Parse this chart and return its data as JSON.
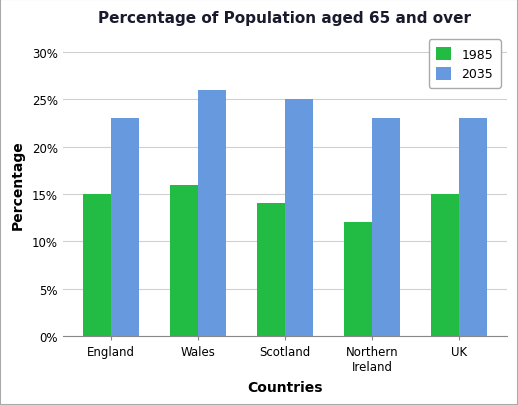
{
  "title": "Percentage of Population aged 65 and over",
  "categories": [
    "England",
    "Wales",
    "Scotland",
    "Northern\nIreland",
    "UK"
  ],
  "values_1985": [
    15,
    16,
    14,
    12,
    15
  ],
  "values_2035": [
    23,
    26,
    25,
    23,
    23
  ],
  "color_1985": "#22bb44",
  "color_2035": "#6699dd",
  "legend_labels": [
    "1985",
    "2035"
  ],
  "xlabel": "Countries",
  "ylabel": "Percentage",
  "ylim_max": 32,
  "yticks": [
    0,
    5,
    10,
    15,
    20,
    25,
    30
  ],
  "ytick_labels": [
    "0%",
    "5%",
    "10%",
    "15%",
    "20%",
    "25%",
    "30%"
  ],
  "bar_width": 0.32,
  "title_fontsize": 11,
  "title_color": "#1a1a2e",
  "axis_label_fontsize": 10,
  "tick_fontsize": 8.5,
  "legend_fontsize": 9,
  "background_color": "#ffffff",
  "grid_color": "#d0d0d0",
  "border_color": "#aaaaaa"
}
